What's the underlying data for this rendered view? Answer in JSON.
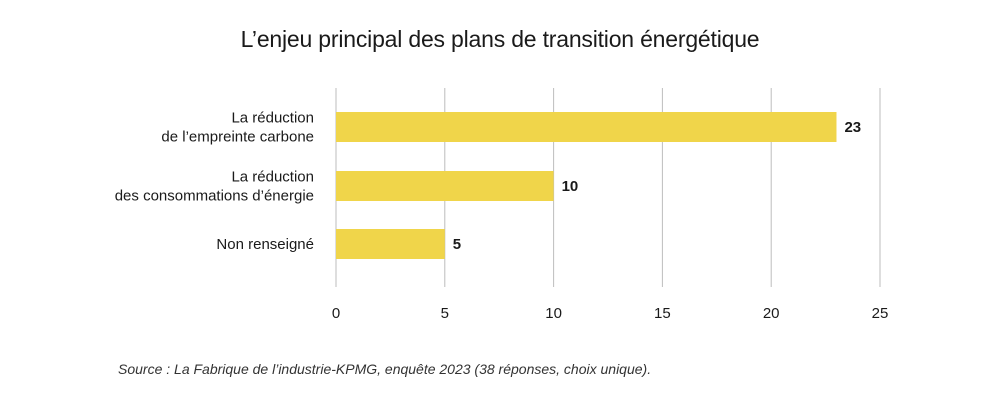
{
  "chart_data": {
    "type": "bar",
    "orientation": "horizontal",
    "title": "L’enjeu principal des plans de transition énergétique",
    "categories": [
      [
        "La réduction",
        "de l’empreinte carbone"
      ],
      [
        "La réduction",
        "des consommations d’énergie"
      ],
      [
        "Non renseigné"
      ]
    ],
    "values": [
      23,
      10,
      5
    ],
    "data_labels": [
      "23",
      "10",
      "5"
    ],
    "xlim": [
      0,
      25
    ],
    "xticks": [
      0,
      5,
      10,
      15,
      20,
      25
    ],
    "xtick_labels": [
      "0",
      "5",
      "10",
      "15",
      "20",
      "25"
    ],
    "xlabel": "",
    "ylabel": "",
    "grid": "vertical",
    "colors": {
      "bar": "#f0d54a",
      "grid": "#bdbdbd",
      "text": "#1a1a1a"
    }
  },
  "source": "Source : La Fabrique de l’industrie-KPMG, enquête 2023 (38 réponses, choix unique)."
}
